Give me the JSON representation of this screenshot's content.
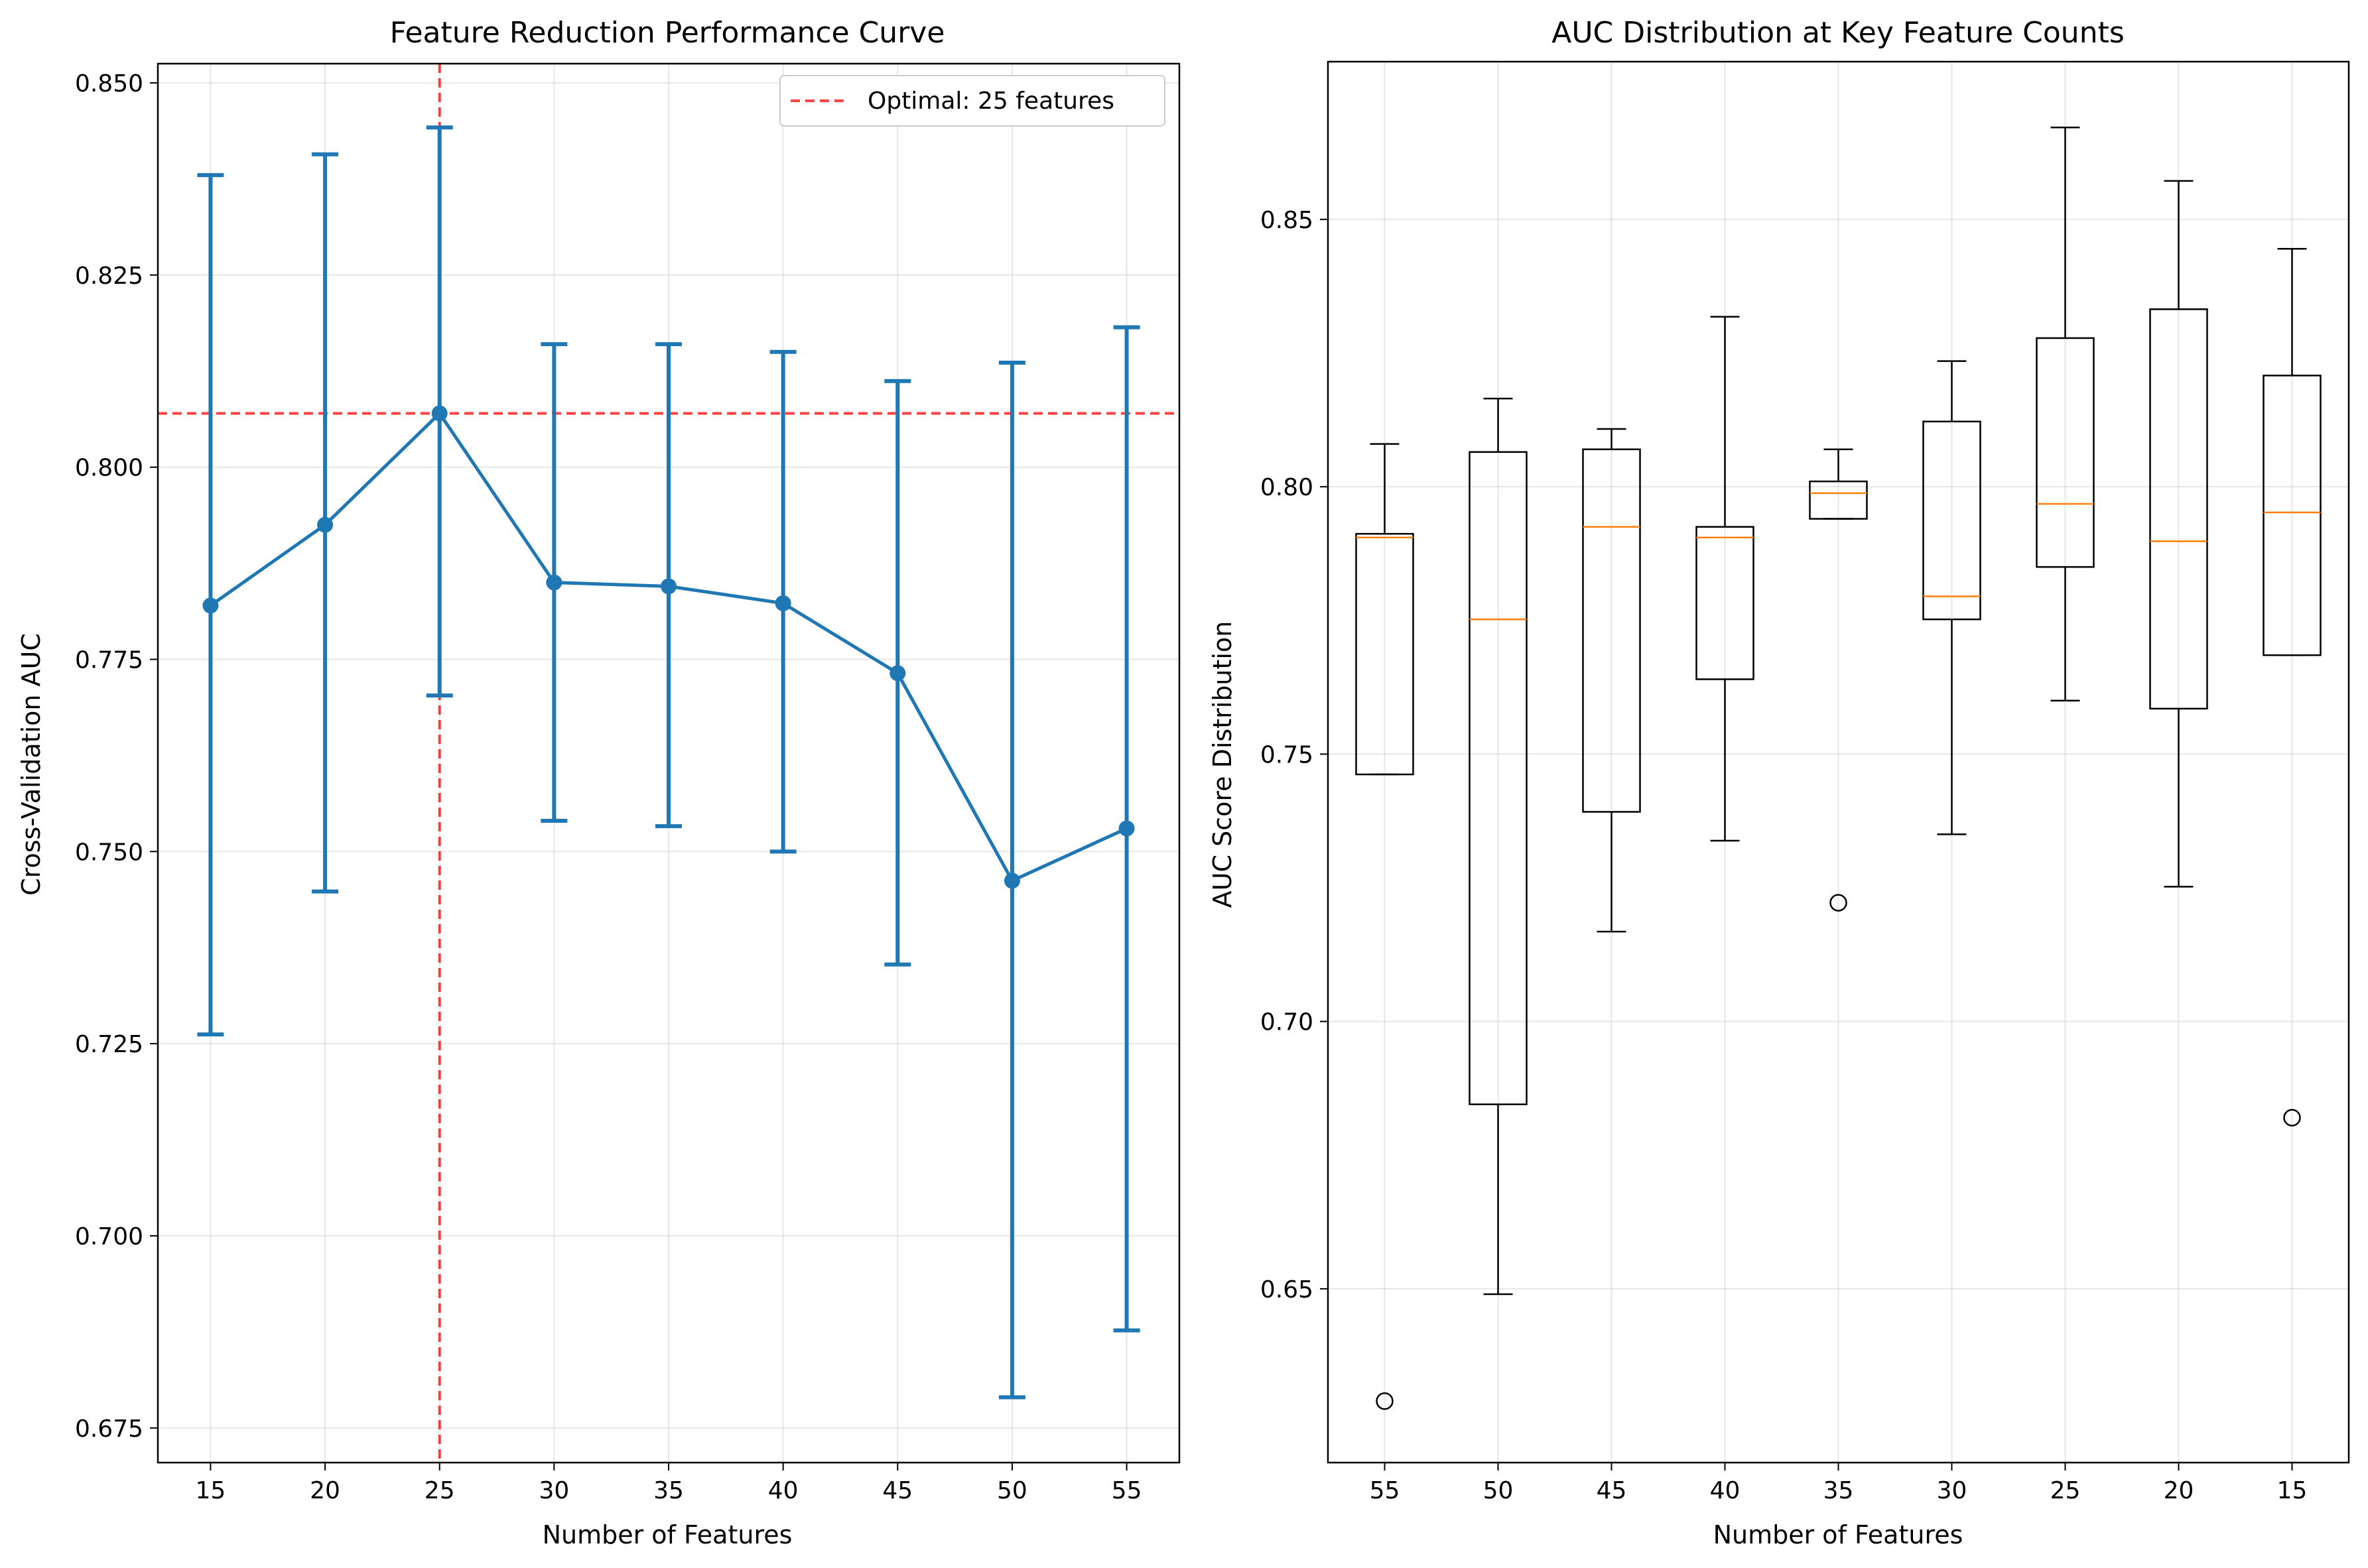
{
  "chart_data": [
    {
      "type": "line",
      "title": "Feature Reduction Performance Curve",
      "xlabel": "Number of Features",
      "ylabel": "Cross-Validation AUC",
      "xlim": [
        12.7,
        57.3
      ],
      "ylim": [
        0.6705,
        0.8525
      ],
      "xticks": [
        15,
        20,
        25,
        30,
        35,
        40,
        45,
        50,
        55
      ],
      "yticks": [
        0.675,
        0.7,
        0.725,
        0.75,
        0.775,
        0.8,
        0.825,
        0.85
      ],
      "yticklabels": [
        "0.675",
        "0.700",
        "0.725",
        "0.750",
        "0.775",
        "0.800",
        "0.825",
        "0.850"
      ],
      "grid": true,
      "series": [
        {
          "x": [
            15,
            20,
            25,
            30,
            35,
            40,
            45,
            50,
            55
          ],
          "y": [
            0.782,
            0.7925,
            0.807,
            0.785,
            0.7845,
            0.7823,
            0.7732,
            0.7462,
            0.753
          ],
          "err_low": [
            0.7262,
            0.7448,
            0.7703,
            0.754,
            0.7533,
            0.75,
            0.7353,
            0.679,
            0.6877
          ],
          "err_high": [
            0.838,
            0.8407,
            0.8442,
            0.816,
            0.816,
            0.815,
            0.8112,
            0.8136,
            0.8182
          ],
          "color": "#1f77b4"
        }
      ],
      "reference_lines": [
        {
          "orientation": "vertical",
          "value": 25,
          "color": "#ff0000"
        },
        {
          "orientation": "horizontal",
          "value": 0.807,
          "color": "#ff0000"
        }
      ],
      "legend": {
        "placement": "top-right",
        "entries": [
          "Optimal: 25 features"
        ]
      }
    },
    {
      "type": "box",
      "title": "AUC Distribution at Key Feature Counts",
      "xlabel": "Number of Features",
      "ylabel": "AUC Score Distribution",
      "ylim": [
        0.6175,
        0.8795
      ],
      "yticks": [
        0.65,
        0.7,
        0.75,
        0.8,
        0.85
      ],
      "yticklabels": [
        "0.65",
        "0.70",
        "0.75",
        "0.80",
        "0.85"
      ],
      "grid": true,
      "categories": [
        "55",
        "50",
        "45",
        "40",
        "35",
        "30",
        "25",
        "20",
        "15"
      ],
      "boxes": [
        {
          "whisker_low": 0.7462,
          "q1": 0.7462,
          "median": 0.7905,
          "q3": 0.7912,
          "whisker_high": 0.808,
          "outliers": [
            0.629
          ]
        },
        {
          "whisker_low": 0.649,
          "q1": 0.6845,
          "median": 0.7752,
          "q3": 0.8065,
          "whisker_high": 0.8165,
          "outliers": []
        },
        {
          "whisker_low": 0.7168,
          "q1": 0.7392,
          "median": 0.7925,
          "q3": 0.807,
          "whisker_high": 0.8108,
          "outliers": []
        },
        {
          "whisker_low": 0.7338,
          "q1": 0.764,
          "median": 0.7905,
          "q3": 0.7925,
          "whisker_high": 0.8318,
          "outliers": []
        },
        {
          "whisker_low": 0.794,
          "q1": 0.794,
          "median": 0.7988,
          "q3": 0.801,
          "whisker_high": 0.807,
          "outliers": [
            0.7222
          ]
        },
        {
          "whisker_low": 0.735,
          "q1": 0.7752,
          "median": 0.7795,
          "q3": 0.8122,
          "whisker_high": 0.8235,
          "outliers": []
        },
        {
          "whisker_low": 0.76,
          "q1": 0.785,
          "median": 0.7968,
          "q3": 0.8278,
          "whisker_high": 0.8672,
          "outliers": []
        },
        {
          "whisker_low": 0.7252,
          "q1": 0.7585,
          "median": 0.7898,
          "q3": 0.8332,
          "whisker_high": 0.8572,
          "outliers": []
        },
        {
          "whisker_low": 0.7685,
          "q1": 0.7685,
          "median": 0.7952,
          "q3": 0.8208,
          "whisker_high": 0.8445,
          "outliers": [
            0.682
          ]
        }
      ],
      "box_color": "#000000",
      "median_color": "#ff7f0e"
    }
  ]
}
